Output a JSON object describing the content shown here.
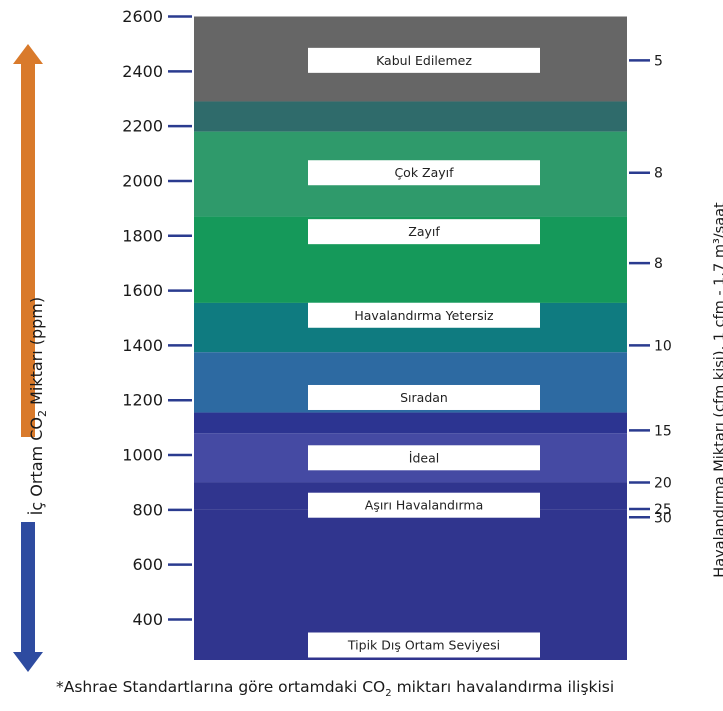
{
  "colors": {
    "arrow_up": "#d97a2b",
    "arrow_down": "#2e4ba0",
    "tick": "#2a3b8f",
    "label_box": "#ffffff"
  },
  "chart_data": {
    "type": "bar",
    "left_axis": {
      "label_parts": [
        "İç Ortam CO",
        "2",
        " Miktarı (ppm)"
      ],
      "ticks": [
        2600,
        2400,
        2200,
        2000,
        1800,
        1600,
        1400,
        1200,
        1000,
        800,
        600,
        400
      ],
      "ylim": [
        300,
        2600
      ]
    },
    "right_axis": {
      "label": "Havalandırma Miktarı (cfm kişi), 1 cfm - 1.7 m³/saat",
      "ticks": [
        {
          "label": "5",
          "ppm": 2440
        },
        {
          "label": "8",
          "ppm": 2030
        },
        {
          "label": "8",
          "ppm": 1700
        },
        {
          "label": "10",
          "ppm": 1400
        },
        {
          "label": "15",
          "ppm": 1090
        },
        {
          "label": "20",
          "ppm": 900
        },
        {
          "label": "25",
          "ppm": 803
        },
        {
          "label": "30",
          "ppm": 773
        }
      ]
    },
    "bands": [
      {
        "name": "Kabul Edilemez",
        "from": 2290,
        "to": 2600,
        "color": "#666666",
        "label_ppm": 2440
      },
      {
        "name": "",
        "from": 2180,
        "to": 2290,
        "color": "#2f6b6b",
        "label_ppm": null
      },
      {
        "name": "Çok Zayıf",
        "from": 1870,
        "to": 2180,
        "color": "#2f9a6b",
        "label_ppm": 2030
      },
      {
        "name": "Zayıf",
        "from": 1555,
        "to": 1870,
        "color": "#15995a",
        "label_ppm": 1815
      },
      {
        "name": "Havalandırma Yetersiz",
        "from": 1375,
        "to": 1555,
        "color": "#0f7b80",
        "label_ppm": 1510
      },
      {
        "name": "Sıradan",
        "from": 1155,
        "to": 1375,
        "color": "#2d6aa2",
        "label_ppm": 1210
      },
      {
        "name": "",
        "from": 1080,
        "to": 1155,
        "color": "#2c3491",
        "label_ppm": null
      },
      {
        "name": "İdeal",
        "from": 900,
        "to": 1080,
        "color": "#454aa3",
        "label_ppm": 990
      },
      {
        "name": "Aşırı Havalandırma",
        "from": 800,
        "to": 900,
        "color": "#30358e",
        "label_ppm": 817
      },
      {
        "name": "Tipik Dış Ortam Seviyesi",
        "from": 300,
        "to": 800,
        "color": "#30358e",
        "label_ppm": 345
      }
    ]
  },
  "footnote_parts": [
    "*Ashrae Standartlarına göre ortamdaki CO",
    "2",
    " miktarı havalandırma ilişkisi"
  ]
}
